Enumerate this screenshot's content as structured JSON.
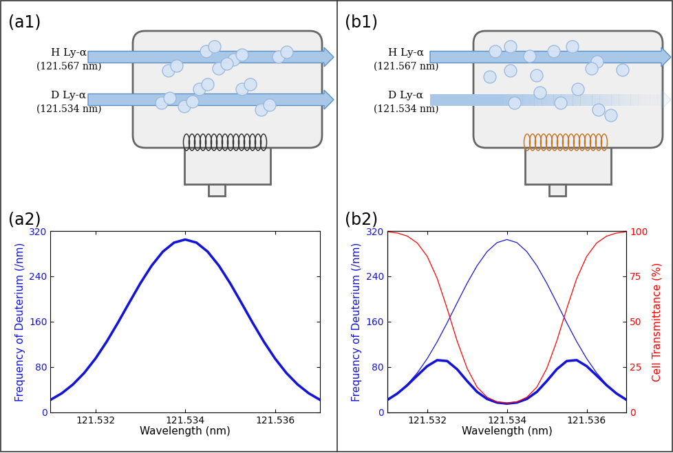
{
  "panel_labels": [
    "(a1)",
    "(b1)",
    "(a2)",
    "(b2)"
  ],
  "diagram": {
    "beams": [
      {
        "label": "H Ly-α",
        "wavelength": "(121.567 nm)"
      },
      {
        "label": "D Ly-α",
        "wavelength": "(121.534 nm)"
      }
    ]
  },
  "chart_data": [
    {
      "type": "line",
      "x": [
        121.531,
        121.53125,
        121.5315,
        121.53175,
        121.532,
        121.53225,
        121.5325,
        121.53275,
        121.533,
        121.53325,
        121.5335,
        121.53375,
        121.534,
        121.53425,
        121.5345,
        121.53475,
        121.535,
        121.53525,
        121.5355,
        121.53575,
        121.536,
        121.53625,
        121.5365,
        121.53675,
        121.537
      ],
      "values": [
        21.9,
        33.4,
        49.1,
        69.4,
        94.7,
        124.6,
        158,
        193.2,
        227.7,
        258.7,
        283.5,
        299.5,
        305,
        299.5,
        283.5,
        258.7,
        227.7,
        193.2,
        158,
        124.6,
        94.7,
        69.4,
        49.1,
        33.4,
        21.9
      ],
      "color": "#1414d8",
      "xlabel": "Wavelength (nm)",
      "ylabel": "Frequency of Deuterium (/nm)",
      "xlim": [
        121.531,
        121.537
      ],
      "xticks": [
        121.532,
        121.534,
        121.536
      ],
      "ylim": [
        0,
        320
      ],
      "yticks": [
        0,
        80,
        160,
        240,
        320
      ]
    },
    {
      "type": "line",
      "x": [
        121.531,
        121.53125,
        121.5315,
        121.53175,
        121.532,
        121.53225,
        121.5325,
        121.53275,
        121.533,
        121.53325,
        121.5335,
        121.53375,
        121.534,
        121.53425,
        121.5345,
        121.53475,
        121.535,
        121.53525,
        121.5355,
        121.53575,
        121.536,
        121.53625,
        121.5365,
        121.53675,
        121.537
      ],
      "series": [
        {
          "color": "#1414d8",
          "values": [
            21.9,
            33.4,
            49.1,
            69.4,
            94.7,
            124.6,
            158,
            193.2,
            227.7,
            258.7,
            283.5,
            299.5,
            305,
            299.5,
            283.5,
            258.7,
            227.7,
            193.2,
            158,
            124.6,
            94.7,
            69.4,
            49.1,
            33.4,
            21.9
          ]
        },
        {
          "color": "#ff0000",
          "axis": "y2",
          "values": [
            99.6,
            98.9,
            97.2,
            93.4,
            86.0,
            73.8,
            57.2,
            39.3,
            24.2,
            13.9,
            8.3,
            5.7,
            5.0,
            5.7,
            8.3,
            13.9,
            24.2,
            39.3,
            57.2,
            73.8,
            86.0,
            93.4,
            97.2,
            98.9,
            99.6
          ]
        },
        {
          "color": "#1414d8",
          "values": [
            21.8,
            33.0,
            47.7,
            64.8,
            81.4,
            92.0,
            90.4,
            75.9,
            55.1,
            36.0,
            23.5,
            17.1,
            15.2,
            17.1,
            23.5,
            36.0,
            55.1,
            75.9,
            90.4,
            92.0,
            81.4,
            64.8,
            47.7,
            33.0,
            21.8
          ]
        }
      ],
      "xlabel": "Wavelength (nm)",
      "ylabel": "Frequency of Deuterium (/nm)",
      "y2label": "Cell Transmittance (%)",
      "xlim": [
        121.531,
        121.537
      ],
      "xticks": [
        121.532,
        121.534,
        121.536
      ],
      "ylim": [
        0,
        320
      ],
      "yticks": [
        0,
        80,
        160,
        240,
        320
      ],
      "y2lim": [
        0,
        100
      ],
      "y2ticks": [
        0,
        25,
        50,
        75,
        100
      ]
    }
  ]
}
